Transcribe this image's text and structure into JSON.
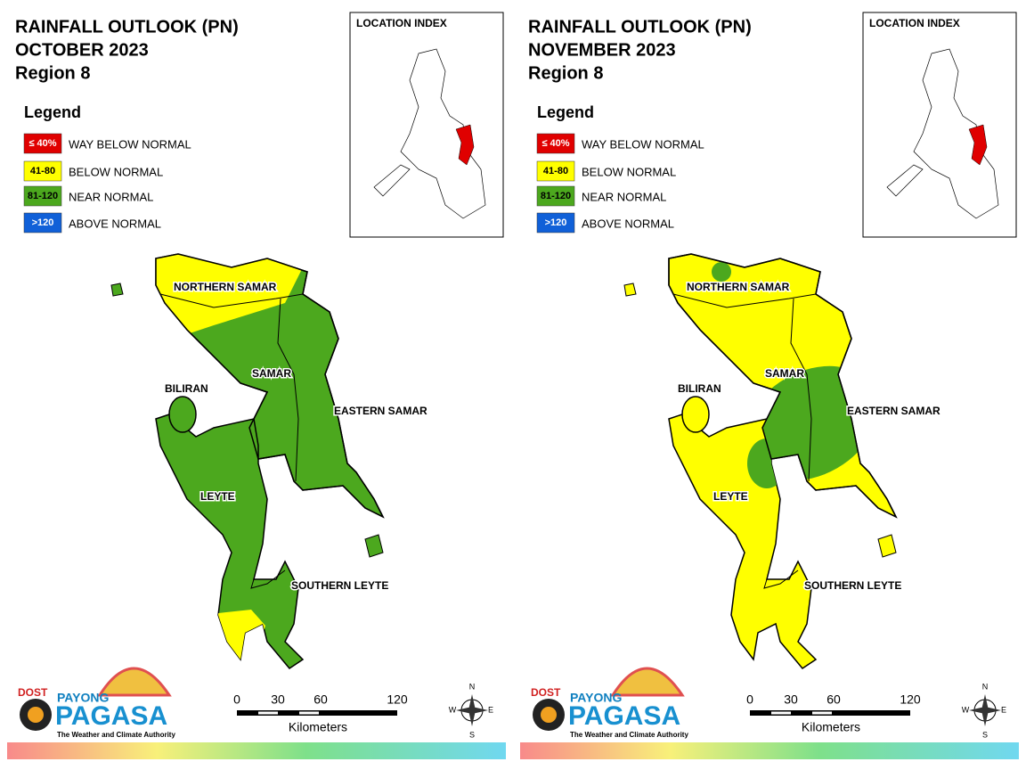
{
  "panels": [
    {
      "title": [
        "RAINFALL OUTLOOK (PN)",
        "OCTOBER 2023",
        "Region 8"
      ],
      "legend_title": "Legend",
      "legend": [
        {
          "key": "≤ 40%",
          "label": "WAY BELOW NORMAL",
          "color": "#e00000"
        },
        {
          "key": "41-80",
          "label": "BELOW NORMAL",
          "color": "#ffff00"
        },
        {
          "key": "81-120",
          "label": "NEAR NORMAL",
          "color": "#4ca81e"
        },
        {
          "key": ">120",
          "label": "ABOVE NORMAL",
          "color": "#1060d8"
        }
      ],
      "location_index": "LOCATION INDEX",
      "regions": [
        "NORTHERN SAMAR",
        "SAMAR",
        "BILIRAN",
        "EASTERN SAMAR",
        "LEYTE",
        "SOUTHERN LEYTE"
      ],
      "scale": {
        "ticks": [
          "0",
          "30",
          "60",
          "120"
        ],
        "unit": "Kilometers"
      },
      "compass": [
        "N",
        "E",
        "S",
        "W"
      ],
      "logo": {
        "agency": "DOST",
        "brand_top": "PAYONG",
        "brand": "PAGASA",
        "tagline": "The Weather and Climate Authority"
      }
    },
    {
      "title": [
        "RAINFALL OUTLOOK (PN)",
        "NOVEMBER 2023",
        "Region 8"
      ],
      "legend_title": "Legend",
      "legend": [
        {
          "key": "≤ 40%",
          "label": "WAY BELOW NORMAL",
          "color": "#e00000"
        },
        {
          "key": "41-80",
          "label": "BELOW NORMAL",
          "color": "#ffff00"
        },
        {
          "key": "81-120",
          "label": "NEAR NORMAL",
          "color": "#4ca81e"
        },
        {
          "key": ">120",
          "label": "ABOVE NORMAL",
          "color": "#1060d8"
        }
      ],
      "location_index": "LOCATION INDEX",
      "regions": [
        "NORTHERN SAMAR",
        "SAMAR",
        "BILIRAN",
        "EASTERN SAMAR",
        "LEYTE",
        "SOUTHERN LEYTE"
      ],
      "scale": {
        "ticks": [
          "0",
          "30",
          "60",
          "120"
        ],
        "unit": "Kilometers"
      },
      "compass": [
        "N",
        "E",
        "S",
        "W"
      ],
      "logo": {
        "agency": "DOST",
        "brand_top": "PAYONG",
        "brand": "PAGASA",
        "tagline": "The Weather and Climate Authority"
      }
    }
  ]
}
